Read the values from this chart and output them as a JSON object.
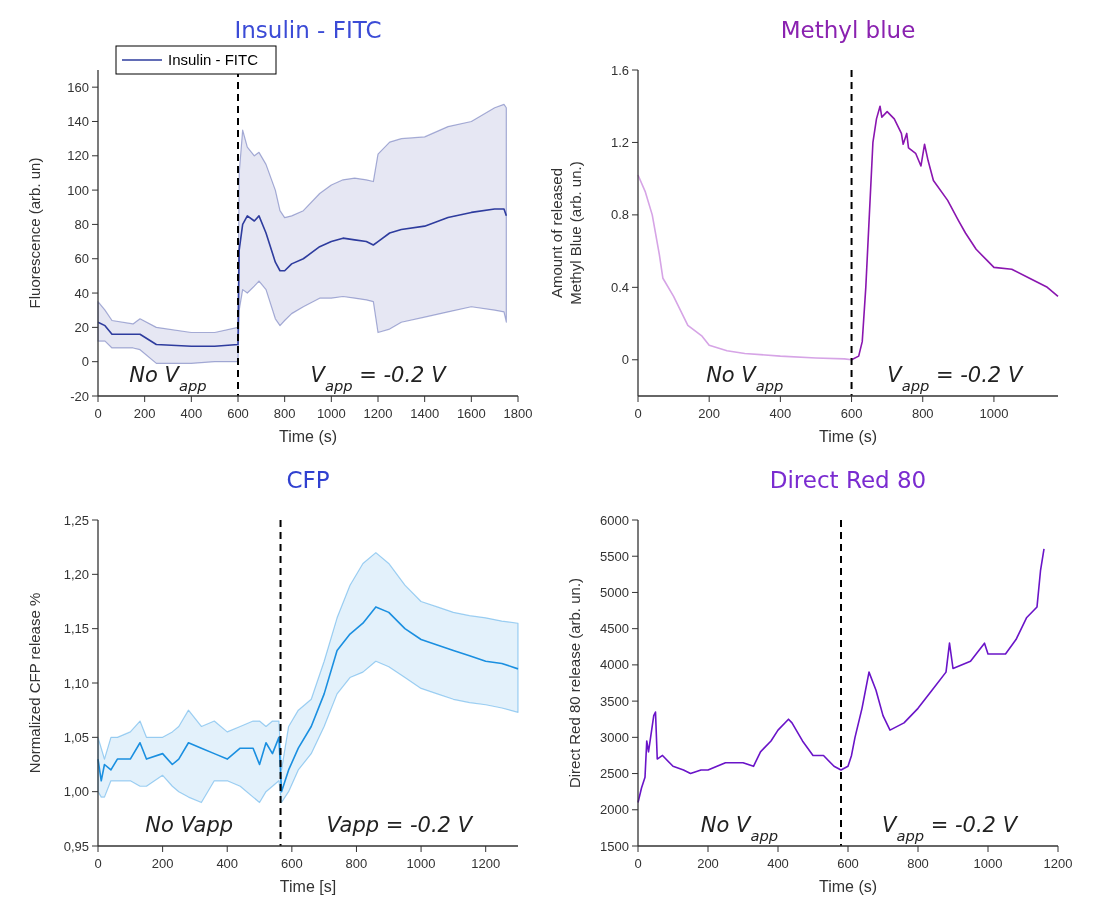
{
  "chart_data": [
    {
      "type": "line",
      "title": "Insulin - FITC",
      "xlabel": "Time (s)",
      "ylabel": "Fluorescence (arb. un)",
      "xlim": [
        0,
        1800
      ],
      "xticks": [
        0,
        200,
        400,
        600,
        800,
        1000,
        1200,
        1400,
        1600,
        1800
      ],
      "ylim": [
        -20,
        170
      ],
      "yticks": [
        -20,
        0,
        20,
        40,
        60,
        80,
        100,
        120,
        140,
        160
      ],
      "legend": "top left",
      "annotations": [
        "No V$_{app}$",
        "V$_{app}$ = -0.2 V"
      ],
      "ref_lines": [
        {
          "axis": "x",
          "value": 600,
          "color": "#000000",
          "line_style": "dashed"
        }
      ],
      "series": [
        {
          "name": "Insulin - FITC",
          "color": "#2e3c9e",
          "x": [
            0,
            30,
            60,
            150,
            180,
            250,
            400,
            500,
            600,
            605,
            620,
            640,
            670,
            690,
            720,
            760,
            780,
            800,
            830,
            880,
            950,
            1000,
            1050,
            1100,
            1150,
            1180,
            1200,
            1250,
            1300,
            1400,
            1500,
            1600,
            1700,
            1740,
            1750
          ],
          "values": [
            23,
            21,
            16,
            16,
            16,
            10,
            9,
            9,
            10,
            65,
            80,
            85,
            82,
            85,
            75,
            58,
            53,
            53,
            57,
            60,
            67,
            70,
            72,
            71,
            70,
            68,
            70,
            75,
            77,
            79,
            84,
            87,
            89,
            89,
            85
          ],
          "lower": [
            12,
            12,
            8,
            8,
            7,
            -1,
            -1,
            0,
            0,
            30,
            42,
            40,
            44,
            47,
            42,
            25,
            21,
            24,
            28,
            32,
            37,
            37,
            38,
            37,
            36,
            35,
            17,
            19,
            23,
            26,
            29,
            32,
            30,
            29,
            23
          ],
          "upper": [
            35,
            30,
            24,
            22,
            25,
            20,
            17,
            17,
            20,
            110,
            135,
            125,
            120,
            122,
            115,
            100,
            88,
            84,
            85,
            88,
            98,
            103,
            106,
            107,
            106,
            105,
            121,
            128,
            130,
            131,
            137,
            140,
            148,
            150,
            148
          ]
        }
      ]
    },
    {
      "type": "line",
      "title": "Methyl blue",
      "xlabel": "Time (s)",
      "ylabel": "Amount of released\nMethyl Blue (arb. un.)",
      "xlim": [
        0,
        1180
      ],
      "xticks": [
        0,
        200,
        400,
        600,
        800,
        1000
      ],
      "ylim": [
        -0.2,
        1.6
      ],
      "yticks": [
        0,
        0.4,
        0.8,
        1.2,
        1.6
      ],
      "annotations": [
        "No V$_{app}$",
        "V$_{app}$ = -0.2 V"
      ],
      "ref_lines": [
        {
          "axis": "x",
          "value": 600,
          "color": "#000000",
          "line_style": "dashed"
        }
      ],
      "series": [
        {
          "color": "#d6a4e6",
          "x": [
            0,
            20,
            40,
            60,
            70,
            100,
            140,
            180,
            200,
            250,
            300,
            400,
            500,
            580,
            600
          ],
          "values": [
            1.02,
            0.93,
            0.8,
            0.58,
            0.45,
            0.35,
            0.19,
            0.13,
            0.08,
            0.05,
            0.035,
            0.02,
            0.01,
            0.005,
            0
          ]
        },
        {
          "color": "#8a16b0",
          "x": [
            600,
            620,
            630,
            640,
            650,
            660,
            670,
            680,
            685,
            700,
            720,
            740,
            745,
            755,
            760,
            780,
            795,
            805,
            815,
            830,
            870,
            900,
            920,
            950,
            980,
            1000,
            1050,
            1100,
            1150,
            1180
          ],
          "values": [
            0,
            0.02,
            0.1,
            0.4,
            0.8,
            1.2,
            1.33,
            1.4,
            1.34,
            1.37,
            1.33,
            1.25,
            1.19,
            1.25,
            1.17,
            1.14,
            1.07,
            1.19,
            1.1,
            0.99,
            0.88,
            0.77,
            0.7,
            0.61,
            0.55,
            0.51,
            0.5,
            0.45,
            0.4,
            0.35
          ]
        }
      ]
    },
    {
      "type": "line",
      "title": "CFP",
      "xlabel": "Time [s]",
      "ylabel": "Normalized CFP release %",
      "xlim": [
        0,
        1300
      ],
      "xticks": [
        0,
        200,
        400,
        600,
        800,
        1000,
        1200
      ],
      "ylim": [
        0.95,
        1.25
      ],
      "yticks": [
        {
          "value": 0.95,
          "label": "0,95"
        },
        {
          "value": 1,
          "label": "1,00"
        },
        {
          "value": 1.05,
          "label": "1,05"
        },
        {
          "value": 1.1,
          "label": "1,10"
        },
        {
          "value": 1.15,
          "label": "1,15"
        },
        {
          "value": 1.2,
          "label": "1,20"
        },
        {
          "value": 1.25,
          "label": "1,25"
        }
      ],
      "annotations": [
        "No Vapp",
        "Vapp = -0.2 V"
      ],
      "ref_lines": [
        {
          "axis": "x",
          "value": 565,
          "color": "#000000",
          "line_style": "dashed"
        }
      ],
      "series": [
        {
          "color": "#1a8fe0",
          "x": [
            0,
            10,
            20,
            40,
            60,
            100,
            130,
            150,
            200,
            230,
            250,
            280,
            320,
            360,
            400,
            440,
            480,
            500,
            520,
            540,
            560,
            568,
            590,
            620,
            660,
            700,
            740,
            780,
            820,
            860,
            900,
            950,
            1000,
            1050,
            1100,
            1150,
            1200,
            1250,
            1300
          ],
          "values": [
            1.03,
            1.01,
            1.025,
            1.02,
            1.03,
            1.03,
            1.045,
            1.03,
            1.035,
            1.025,
            1.03,
            1.045,
            1.04,
            1.035,
            1.03,
            1.04,
            1.04,
            1.025,
            1.045,
            1.035,
            1.05,
            1,
            1.02,
            1.04,
            1.06,
            1.09,
            1.13,
            1.145,
            1.155,
            1.17,
            1.165,
            1.15,
            1.14,
            1.135,
            1.13,
            1.125,
            1.12,
            1.118,
            1.113
          ],
          "lower": [
            1,
            0.995,
            0.995,
            1.01,
            1.01,
            1.01,
            1.005,
            1.005,
            1.015,
            1.005,
            1,
            0.995,
            0.99,
            1.01,
            1.01,
            1.005,
            0.995,
            0.99,
            1,
            1.005,
            1.01,
            0.99,
            1,
            1.02,
            1.035,
            1.06,
            1.09,
            1.105,
            1.11,
            1.12,
            1.115,
            1.105,
            1.095,
            1.09,
            1.085,
            1.082,
            1.08,
            1.077,
            1.073
          ],
          "upper": [
            1.05,
            1.04,
            1.03,
            1.05,
            1.05,
            1.055,
            1.065,
            1.05,
            1.05,
            1.055,
            1.06,
            1.075,
            1.06,
            1.065,
            1.055,
            1.06,
            1.065,
            1.065,
            1.06,
            1.065,
            1.065,
            1.02,
            1.06,
            1.075,
            1.085,
            1.12,
            1.16,
            1.19,
            1.21,
            1.22,
            1.21,
            1.19,
            1.175,
            1.17,
            1.165,
            1.162,
            1.16,
            1.157,
            1.155
          ]
        }
      ]
    },
    {
      "type": "line",
      "title": "Direct Red 80",
      "xlabel": "Time (s)",
      "ylabel": "Direct Red 80 release (arb. un.)",
      "xlim": [
        0,
        1200
      ],
      "xticks": [
        0,
        200,
        400,
        600,
        800,
        1000,
        1200
      ],
      "ylim": [
        1500,
        6000
      ],
      "yticks": [
        1500,
        2000,
        2500,
        3000,
        3500,
        4000,
        4500,
        5000,
        5500,
        6000
      ],
      "annotations": [
        "No V$_{app}$",
        "V$_{app}$ = -0.2 V"
      ],
      "ref_lines": [
        {
          "axis": "x",
          "value": 580,
          "color": "#000000",
          "line_style": "dashed"
        }
      ],
      "series": [
        {
          "color": "#6a14c8",
          "x": [
            0,
            10,
            20,
            25,
            30,
            45,
            50,
            55,
            70,
            100,
            130,
            150,
            180,
            200,
            250,
            300,
            330,
            350,
            380,
            400,
            430,
            440,
            470,
            500,
            530,
            560,
            580,
            600,
            610,
            620,
            640,
            660,
            680,
            700,
            720,
            760,
            800,
            840,
            880,
            890,
            900,
            950,
            990,
            1000,
            1050,
            1080,
            1110,
            1140,
            1150,
            1160
          ],
          "values": [
            2100,
            2300,
            2450,
            2950,
            2800,
            3300,
            3350,
            2700,
            2750,
            2600,
            2550,
            2500,
            2550,
            2550,
            2650,
            2650,
            2600,
            2800,
            2950,
            3100,
            3250,
            3200,
            2950,
            2750,
            2750,
            2600,
            2550,
            2600,
            2750,
            3000,
            3400,
            3900,
            3650,
            3300,
            3100,
            3200,
            3400,
            3650,
            3900,
            4300,
            3950,
            4050,
            4300,
            4150,
            4150,
            4350,
            4650,
            4800,
            5300,
            5600
          ]
        }
      ]
    }
  ]
}
